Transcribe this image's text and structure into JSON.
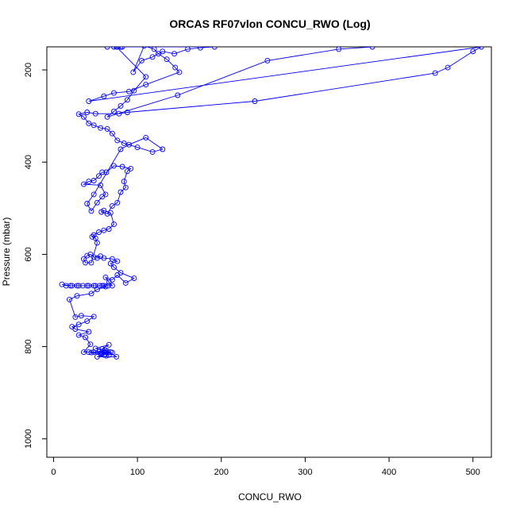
{
  "chart_data": {
    "type": "line",
    "title": "ORCAS RF07vlon CONCU_RWO (Log)",
    "xlabel": "CONCU_RWO",
    "ylabel": "Pressure (mbar)",
    "xlim": [
      -8,
      522
    ],
    "ylim": [
      150,
      1040
    ],
    "y_reversed": true,
    "grid": false,
    "legend": "none",
    "series_color": "#0000ff",
    "x_ticks": [
      0,
      100,
      200,
      300,
      400,
      500
    ],
    "y_ticks": [
      200,
      400,
      600,
      800,
      1000
    ],
    "series": [
      {
        "points": [
          [
            63,
            820
          ],
          [
            66,
            818
          ],
          [
            58,
            815
          ],
          [
            70,
            813
          ],
          [
            48,
            812
          ],
          [
            55,
            810
          ],
          [
            62,
            808
          ],
          [
            75,
            822
          ],
          [
            52,
            822
          ],
          [
            60,
            818
          ],
          [
            45,
            813
          ],
          [
            68,
            812
          ],
          [
            57,
            816
          ],
          [
            64,
            810
          ],
          [
            50,
            804
          ],
          [
            66,
            796
          ],
          [
            58,
            805
          ],
          [
            62,
            812
          ],
          [
            42,
            812
          ],
          [
            36,
            812
          ],
          [
            44,
            795
          ],
          [
            38,
            780
          ],
          [
            30,
            775
          ],
          [
            42,
            768
          ],
          [
            26,
            762
          ],
          [
            22,
            757
          ],
          [
            30,
            752
          ],
          [
            40,
            745
          ],
          [
            48,
            735
          ],
          [
            33,
            733
          ],
          [
            26,
            736
          ],
          [
            19,
            698
          ],
          [
            28,
            690
          ],
          [
            45,
            685
          ],
          [
            52,
            676
          ],
          [
            62,
            670
          ],
          [
            58,
            668
          ],
          [
            48,
            668
          ],
          [
            42,
            668
          ],
          [
            35,
            668
          ],
          [
            28,
            668
          ],
          [
            22,
            668
          ],
          [
            15,
            668
          ],
          [
            10,
            665
          ],
          [
            20,
            668
          ],
          [
            30,
            668
          ],
          [
            40,
            668
          ],
          [
            50,
            668
          ],
          [
            55,
            668
          ],
          [
            60,
            668
          ],
          [
            65,
            668
          ],
          [
            70,
            668
          ],
          [
            66,
            660
          ],
          [
            62,
            650
          ],
          [
            70,
            655
          ],
          [
            76,
            645
          ],
          [
            86,
            662
          ],
          [
            96,
            652
          ],
          [
            80,
            640
          ],
          [
            72,
            628
          ],
          [
            68,
            620
          ],
          [
            76,
            615
          ],
          [
            70,
            610
          ],
          [
            60,
            608
          ],
          [
            52,
            608
          ],
          [
            56,
            604
          ],
          [
            48,
            606
          ],
          [
            44,
            600
          ],
          [
            40,
            603
          ],
          [
            36,
            610
          ],
          [
            38,
            618
          ],
          [
            45,
            618
          ],
          [
            52,
            575
          ],
          [
            50,
            565
          ],
          [
            46,
            562
          ],
          [
            48,
            558
          ],
          [
            54,
            552
          ],
          [
            60,
            548
          ],
          [
            66,
            545
          ],
          [
            72,
            535
          ],
          [
            68,
            510
          ],
          [
            60,
            505
          ],
          [
            57,
            508
          ],
          [
            64,
            512
          ],
          [
            70,
            495
          ],
          [
            76,
            488
          ],
          [
            80,
            465
          ],
          [
            86,
            455
          ],
          [
            84,
            442
          ],
          [
            88,
            420
          ],
          [
            92,
            414
          ],
          [
            82,
            410
          ],
          [
            72,
            408
          ],
          [
            63,
            422
          ],
          [
            58,
            422
          ],
          [
            54,
            430
          ],
          [
            48,
            440
          ],
          [
            42,
            442
          ],
          [
            36,
            448
          ],
          [
            56,
            450
          ],
          [
            62,
            470
          ],
          [
            58,
            475
          ],
          [
            52,
            488
          ],
          [
            45,
            506
          ],
          [
            40,
            490
          ],
          [
            48,
            470
          ],
          [
            80,
            372
          ],
          [
            90,
            362
          ],
          [
            110,
            347
          ],
          [
            130,
            372
          ],
          [
            118,
            378
          ],
          [
            100,
            368
          ],
          [
            84,
            359
          ],
          [
            76,
            353
          ],
          [
            70,
            338
          ],
          [
            64,
            328
          ],
          [
            56,
            326
          ],
          [
            48,
            320
          ],
          [
            42,
            316
          ],
          [
            36,
            302
          ],
          [
            30,
            296
          ],
          [
            40,
            292
          ],
          [
            50,
            295
          ],
          [
            78,
            295
          ],
          [
            88,
            292
          ],
          [
            240,
            268
          ],
          [
            455,
            207
          ],
          [
            470,
            195
          ],
          [
            500,
            160
          ],
          [
            510,
            150
          ],
          [
            42,
            268
          ],
          [
            60,
            257
          ],
          [
            72,
            250
          ],
          [
            90,
            247
          ],
          [
            110,
            232
          ],
          [
            150,
            205
          ],
          [
            145,
            195
          ],
          [
            135,
            177
          ],
          [
            125,
            165
          ],
          [
            120,
            155
          ],
          [
            108,
            148
          ],
          [
            95,
            205
          ],
          [
            105,
            180
          ],
          [
            118,
            172
          ],
          [
            130,
            160
          ],
          [
            144,
            165
          ],
          [
            160,
            155
          ],
          [
            175,
            152
          ],
          [
            192,
            150
          ],
          [
            76,
            150
          ],
          [
            72,
            150
          ],
          [
            64,
            150
          ],
          [
            80,
            150
          ],
          [
            82,
            150
          ],
          [
            75,
            150
          ],
          [
            110,
            215
          ],
          [
            96,
            245
          ],
          [
            88,
            265
          ],
          [
            80,
            278
          ],
          [
            72,
            290
          ],
          [
            64,
            302
          ],
          [
            148,
            255
          ],
          [
            255,
            180
          ],
          [
            340,
            155
          ],
          [
            380,
            150
          ]
        ]
      }
    ]
  }
}
